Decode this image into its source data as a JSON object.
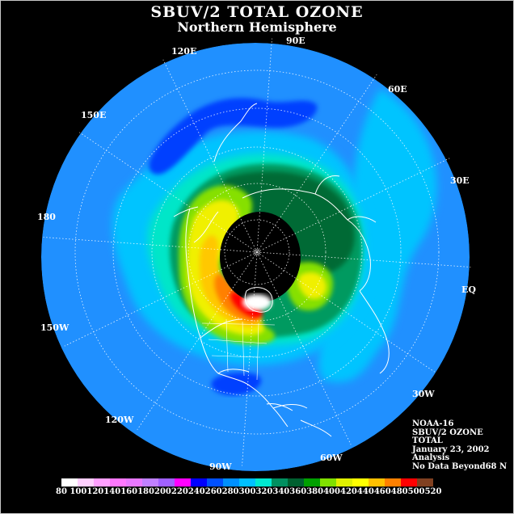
{
  "title": "SBUV/2 TOTAL OZONE",
  "subtitle": "Northern Hemisphere",
  "longitude_labels": {
    "lon_90e": "90E",
    "lon_60e": "60E",
    "lon_30e": "30E",
    "lon_eq": "EQ",
    "lon_30w": "30W",
    "lon_60w": "60W",
    "lon_90w": "90W",
    "lon_120w": "120W",
    "lon_150w": "150W",
    "lon_180": "180",
    "lon_150e": "150E",
    "lon_120e": "120E"
  },
  "info": {
    "line1": "NOAA-16",
    "line2": "SBUV/2 OZONE",
    "line3": "TOTAL",
    "line4": "January 23, 2002",
    "line5": "Analysis",
    "line6": "No Data Beyond68 N"
  },
  "colorbar": {
    "ticks": [
      "80",
      "100",
      "120",
      "140",
      "160",
      "180",
      "200",
      "220",
      "240",
      "260",
      "280",
      "300",
      "320",
      "340",
      "360",
      "380",
      "400",
      "420",
      "440",
      "460",
      "480",
      "500",
      "520"
    ],
    "colors": [
      "#ffffff",
      "#ffd0ff",
      "#ffa0ff",
      "#ff78ff",
      "#e878ff",
      "#c080ff",
      "#a060ff",
      "#ff00ff",
      "#0000ff",
      "#0050ff",
      "#0090ff",
      "#00c0ff",
      "#00e8d0",
      "#009060",
      "#006030",
      "#00a000",
      "#80e000",
      "#e0f000",
      "#ffff00",
      "#ffc000",
      "#ff8000",
      "#ff0000",
      "#804020"
    ]
  },
  "field": {
    "background_color": "#2090ff",
    "no_data_color": "#000000",
    "no_data_latitude": "68 N",
    "features": [
      "low ozone over western Pacific (220-240)",
      "high ozone ring around pole (340-420)",
      "maximum over northern Canada (480-520)"
    ]
  }
}
